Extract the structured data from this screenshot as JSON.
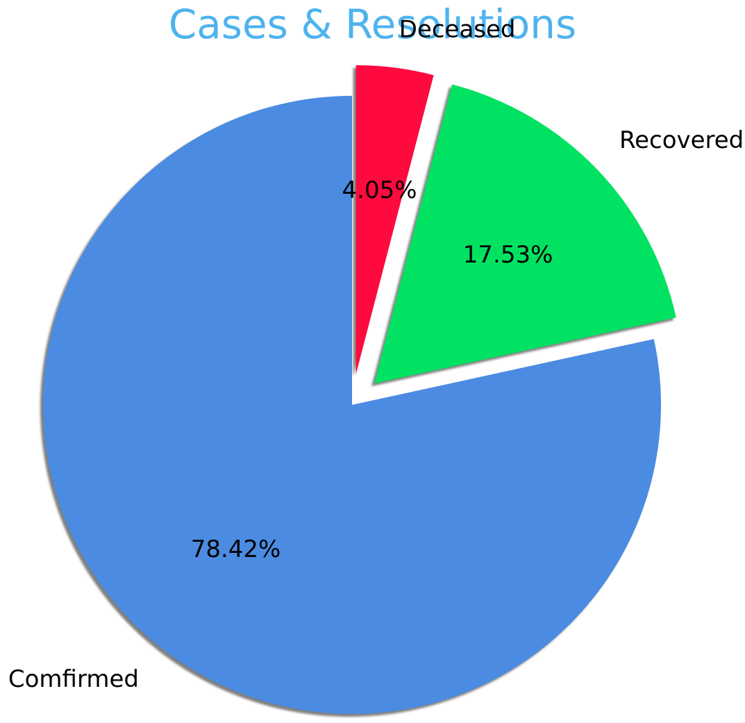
{
  "chart_data": {
    "type": "pie",
    "title": "Cases & Resolutions",
    "title_color": "#4db3ee",
    "start_angle_deg": 90,
    "direction": "counterclockwise",
    "shadow": true,
    "slices": [
      {
        "label": "Comfirmed",
        "value": 78.42,
        "pct_label": "78.42%",
        "color": "#4b8be2",
        "exploded": false
      },
      {
        "label": "Recovered",
        "value": 17.53,
        "pct_label": "17.53%",
        "color": "#02e262",
        "exploded": true
      },
      {
        "label": "Deceased",
        "value": 4.05,
        "pct_label": "4.05%",
        "color": "#ff0a3f",
        "exploded": true
      }
    ]
  }
}
